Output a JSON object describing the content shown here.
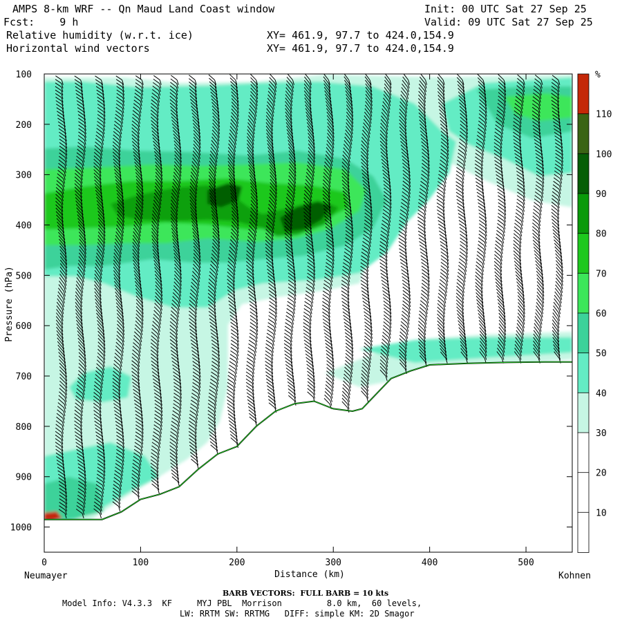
{
  "header": {
    "title_line": "AMPS 8-km WRF -- Qn Maud Land Coast window",
    "init_line": "Init: 00 UTC Sat 27 Sep 25",
    "fcst_line": "Fcst:    9 h",
    "valid_line": "Valid: 09 UTC Sat 27 Sep 25",
    "field1": "Relative humidity (w.r.t. ice)",
    "field2": "Horizontal wind vectors",
    "xy1": "XY= 461.9, 97.7 to 424.0,154.9",
    "xy2": "XY= 461.9, 97.7 to 424.0,154.9"
  },
  "footer": {
    "barb_note": "BARB VECTORS:  FULL BARB = 10 kts",
    "model_line": "Model Info: V4.3.3  KF     MYJ PBL  Morrison         8.0 km,  60 levels,",
    "phys_line": "LW: RRTM SW: RRTMG   DIFF: simple KM: 2D Smagor"
  },
  "chart_data": {
    "type": "cross-section",
    "xlabel": "Distance (km)",
    "ylabel": "Pressure (hPa)",
    "x_left_label": "Neumayer",
    "x_right_label": "Kohnen",
    "xlim": [
      0,
      548
    ],
    "ylim": [
      1050,
      100
    ],
    "x_ticks": [
      0,
      100,
      200,
      300,
      400,
      500
    ],
    "y_ticks": [
      100,
      200,
      300,
      400,
      500,
      600,
      700,
      800,
      900,
      1000
    ],
    "colorbar": {
      "unit": "%",
      "labels": [
        10,
        20,
        30,
        40,
        50,
        60,
        70,
        80,
        90,
        100,
        110
      ],
      "colors": [
        "#ffffff",
        "#ffffff",
        "#ffffff",
        "#c6f6e4",
        "#64ecc4",
        "#3cd29a",
        "#3ce65a",
        "#1ec81e",
        "#0a9a0a",
        "#065e06",
        "#3a6414",
        "#c42808"
      ]
    },
    "terrain_pressure": {
      "x": [
        0,
        20,
        40,
        60,
        80,
        100,
        120,
        140,
        160,
        180,
        200,
        220,
        240,
        260,
        280,
        300,
        320,
        330,
        340,
        360,
        380,
        400,
        440,
        480,
        520,
        548
      ],
      "p": [
        985,
        985,
        985,
        985,
        970,
        945,
        935,
        920,
        885,
        855,
        840,
        800,
        770,
        755,
        750,
        765,
        770,
        765,
        745,
        705,
        690,
        678,
        675,
        673,
        672,
        672
      ]
    },
    "rh_regions": [
      {
        "level": "30-40",
        "shape": "broad moist layer 100-900 hPa west of 300 km"
      },
      {
        "level": "60-80",
        "shape": "moist band 280-450 hPa from 0-300 km"
      },
      {
        "level": "90-100",
        "shape": "cores near 180 km/340 hPa and 270 km/390 hPa"
      },
      {
        "level": "110+",
        "shape": "surface near Neumayer"
      }
    ],
    "wind_barbs": "columns every ~20 km from 100 hPa to terrain; ~10 kt full barbs"
  }
}
